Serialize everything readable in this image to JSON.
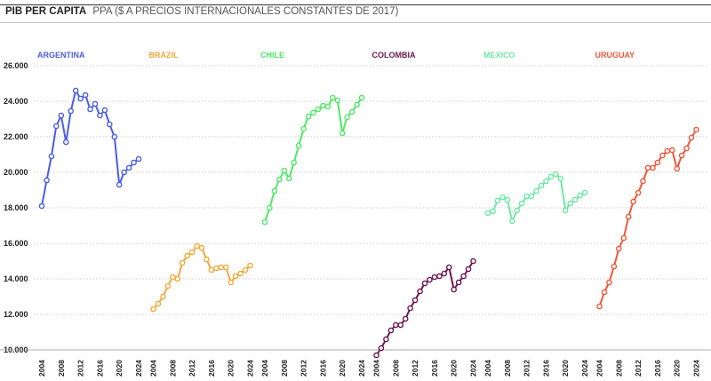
{
  "header": {
    "title": "PIB PER CAPITA",
    "subtitle": "PPA ($ A PRECIOS INTERNACIONALES CONSTANTES DE 2017)"
  },
  "chart_data": {
    "type": "line",
    "grid": true,
    "ylim": [
      10000,
      26000
    ],
    "yticks": [
      "26.000",
      "24.000",
      "22.000",
      "20.000",
      "18.000",
      "16.000",
      "14.000",
      "12.000",
      "10.000"
    ],
    "yticks_values": [
      26000,
      24000,
      22000,
      20000,
      18000,
      16000,
      14000,
      12000,
      10000
    ],
    "x": [
      2004,
      2005,
      2006,
      2007,
      2008,
      2009,
      2010,
      2011,
      2012,
      2013,
      2014,
      2015,
      2016,
      2017,
      2018,
      2019,
      2020,
      2021,
      2022,
      2023,
      2024
    ],
    "xticks": [
      "2004",
      "2008",
      "2012",
      "2016",
      "2020",
      "2024"
    ],
    "xticks_values": [
      2004,
      2008,
      2012,
      2016,
      2020,
      2024
    ],
    "series": [
      {
        "name": "ARGENTINA",
        "color": "#4a5ee0",
        "values": [
          18100,
          19550,
          20900,
          22600,
          23200,
          21700,
          23450,
          24600,
          24150,
          24350,
          23550,
          23850,
          23200,
          23500,
          22700,
          22000,
          19300,
          20000,
          20250,
          20550,
          20750
        ]
      },
      {
        "name": "BRAZIL",
        "color": "#f2a83a",
        "values": [
          12300,
          12600,
          13000,
          13600,
          14100,
          14000,
          14900,
          15300,
          15500,
          15850,
          15750,
          15100,
          14500,
          14600,
          14650,
          14650,
          13800,
          14150,
          14300,
          14500,
          14750
        ]
      },
      {
        "name": "CHILE",
        "color": "#4ee866",
        "values": [
          17200,
          18000,
          18950,
          19600,
          20100,
          19650,
          20550,
          21500,
          22450,
          23150,
          23350,
          23550,
          23750,
          23700,
          24200,
          24050,
          22200,
          23100,
          23400,
          23800,
          24200
        ]
      },
      {
        "name": "COLOMBIA",
        "color": "#6b1650",
        "values": [
          9700,
          10100,
          10600,
          11100,
          11400,
          11400,
          11750,
          12350,
          12800,
          13300,
          13750,
          13950,
          14100,
          14150,
          14300,
          14650,
          13400,
          13800,
          14150,
          14550,
          15000
        ]
      },
      {
        "name": "MEXICO",
        "color": "#6ee8a4",
        "values": [
          17700,
          17800,
          18400,
          18600,
          18450,
          17250,
          17850,
          18250,
          18650,
          18650,
          18950,
          19250,
          19500,
          19750,
          19900,
          19650,
          17850,
          18250,
          18450,
          18700,
          18850
        ]
      },
      {
        "name": "URUGUAY",
        "color": "#ee5838",
        "values": [
          12450,
          13250,
          13800,
          14700,
          15700,
          16300,
          17500,
          18350,
          18850,
          19500,
          20250,
          20250,
          20550,
          20950,
          21200,
          21250,
          20200,
          20950,
          21350,
          21950,
          22400
        ]
      }
    ]
  }
}
